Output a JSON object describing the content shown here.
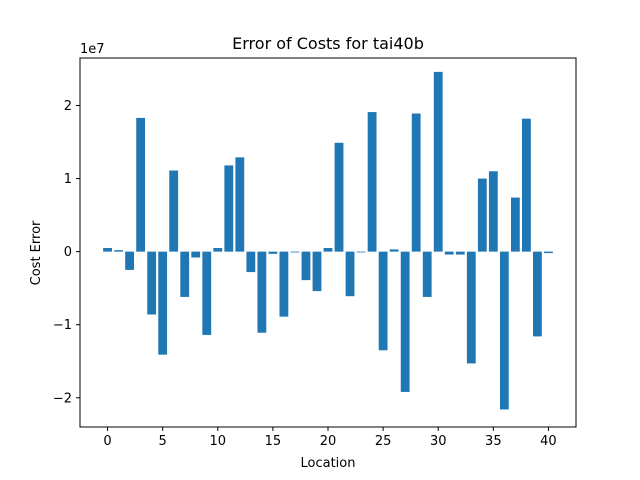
{
  "chart_data": {
    "type": "bar",
    "title": "Error of Costs for tai40b",
    "xlabel": "Location",
    "ylabel": "Cost Error",
    "offset_label": "1e7",
    "bar_color": "#1f77b4",
    "xlim": [
      -2.5,
      42.5
    ],
    "ylim": [
      -2.4,
      2.65
    ],
    "x_ticks": [
      0,
      5,
      10,
      15,
      20,
      25,
      30,
      35,
      40
    ],
    "x_tick_labels": [
      "0",
      "5",
      "10",
      "15",
      "20",
      "25",
      "30",
      "35",
      "40"
    ],
    "y_ticks": [
      -2,
      -1,
      0,
      1,
      2
    ],
    "y_tick_labels": [
      "−2",
      "−1",
      "0",
      "1",
      "2"
    ],
    "grid": false,
    "x": [
      0,
      1,
      2,
      3,
      4,
      5,
      6,
      7,
      8,
      9,
      10,
      11,
      12,
      13,
      14,
      15,
      16,
      17,
      18,
      19,
      20,
      21,
      22,
      23,
      24,
      25,
      26,
      27,
      28,
      29,
      30,
      31,
      32,
      33,
      34,
      35,
      36,
      37,
      38,
      39,
      40
    ],
    "values": [
      0.05,
      0.02,
      -0.25,
      1.83,
      -0.86,
      -1.41,
      1.11,
      -0.62,
      -0.08,
      -1.14,
      0.05,
      1.18,
      1.29,
      -0.28,
      -1.11,
      -0.03,
      -0.89,
      -0.01,
      -0.39,
      -0.54,
      0.05,
      1.49,
      -0.61,
      0.0,
      1.91,
      -1.35,
      0.03,
      -1.92,
      1.89,
      -0.62,
      2.46,
      -0.04,
      -0.04,
      -1.53,
      1.0,
      1.1,
      -2.16,
      0.74,
      1.82,
      -1.16,
      -0.02
    ]
  }
}
